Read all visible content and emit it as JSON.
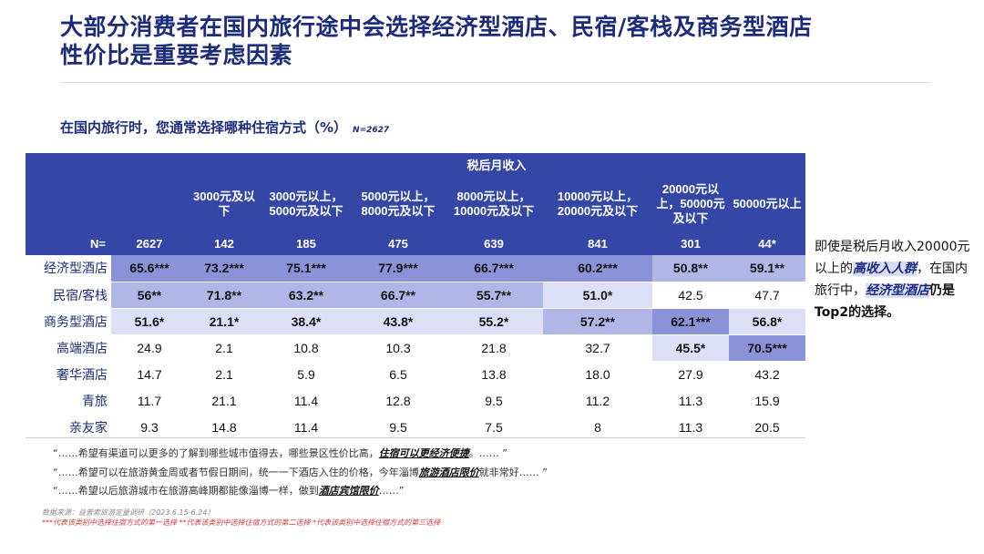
{
  "title": {
    "line1": "大部分消费者在国内旅行途中会选择经济型酒店、民宿/客栈及商务型酒店",
    "line2": "性价比是重要考虑因素"
  },
  "subtitle": {
    "text": "在国内旅行时，您通常选择哪种住宿方式（%）",
    "n": "N=2627"
  },
  "table": {
    "group_header": "税后月收入",
    "columns": [
      "",
      "3000元及以下",
      "3000元以上，5000元及以下",
      "5000元以上，8000元及以下",
      "8000元以上，10000元及以下",
      "10000元以上，20000元及以下",
      "20000元以上，50000元及以下",
      "50000元以上"
    ],
    "n_label": "N=",
    "n_values": [
      "2627",
      "142",
      "185",
      "475",
      "639",
      "841",
      "301",
      "44*"
    ],
    "rows": [
      {
        "label": "经济型酒店",
        "cells": [
          {
            "v": "65.6***",
            "l": 3
          },
          {
            "v": "73.2***",
            "l": 3
          },
          {
            "v": "75.1***",
            "l": 3
          },
          {
            "v": "77.9***",
            "l": 3
          },
          {
            "v": "66.7***",
            "l": 3
          },
          {
            "v": "60.2***",
            "l": 3
          },
          {
            "v": "50.8**",
            "l": 2
          },
          {
            "v": "59.1**",
            "l": 2
          }
        ]
      },
      {
        "label": "民宿/客栈",
        "cells": [
          {
            "v": "56**",
            "l": 2
          },
          {
            "v": "71.8**",
            "l": 2
          },
          {
            "v": "63.2**",
            "l": 2
          },
          {
            "v": "66.7**",
            "l": 2
          },
          {
            "v": "55.7**",
            "l": 2
          },
          {
            "v": "51.0*",
            "l": 1
          },
          {
            "v": "42.5",
            "l": 0
          },
          {
            "v": "47.7",
            "l": 0
          }
        ]
      },
      {
        "label": "商务型酒店",
        "cells": [
          {
            "v": "51.6*",
            "l": 1
          },
          {
            "v": "21.1*",
            "l": 1
          },
          {
            "v": "38.4*",
            "l": 1
          },
          {
            "v": "43.8*",
            "l": 1
          },
          {
            "v": "55.2*",
            "l": 1
          },
          {
            "v": "57.2**",
            "l": 2
          },
          {
            "v": "62.1***",
            "l": 3
          },
          {
            "v": "56.8*",
            "l": 1
          }
        ]
      },
      {
        "label": "高端酒店",
        "cells": [
          {
            "v": "24.9",
            "l": 0
          },
          {
            "v": "2.1",
            "l": 0
          },
          {
            "v": "10.8",
            "l": 0
          },
          {
            "v": "10.3",
            "l": 0
          },
          {
            "v": "21.8",
            "l": 0
          },
          {
            "v": "32.7",
            "l": 0
          },
          {
            "v": "45.5*",
            "l": 1
          },
          {
            "v": "70.5***",
            "l": 3
          }
        ]
      },
      {
        "label": "奢华酒店",
        "cells": [
          {
            "v": "14.7",
            "l": 0
          },
          {
            "v": "2.1",
            "l": 0
          },
          {
            "v": "5.9",
            "l": 0
          },
          {
            "v": "6.5",
            "l": 0
          },
          {
            "v": "13.8",
            "l": 0
          },
          {
            "v": "18.0",
            "l": 0
          },
          {
            "v": "27.9",
            "l": 0
          },
          {
            "v": "43.2",
            "l": 0
          }
        ]
      },
      {
        "label": "青旅",
        "cells": [
          {
            "v": "11.7",
            "l": 0
          },
          {
            "v": "21.1",
            "l": 0
          },
          {
            "v": "11.4",
            "l": 0
          },
          {
            "v": "12.8",
            "l": 0
          },
          {
            "v": "9.5",
            "l": 0
          },
          {
            "v": "11.2",
            "l": 0
          },
          {
            "v": "11.3",
            "l": 0
          },
          {
            "v": "15.9",
            "l": 0
          }
        ]
      },
      {
        "label": "亲友家",
        "cells": [
          {
            "v": "9.3",
            "l": 0
          },
          {
            "v": "14.8",
            "l": 0
          },
          {
            "v": "11.4",
            "l": 0
          },
          {
            "v": "9.5",
            "l": 0
          },
          {
            "v": "7.5",
            "l": 0
          },
          {
            "v": "8",
            "l": 0
          },
          {
            "v": "11.3",
            "l": 0
          },
          {
            "v": "20.5",
            "l": 0
          }
        ]
      }
    ],
    "colors": {
      "level3": "#8b93d8",
      "level2": "#b0b6e6",
      "level1": "#dcdff5",
      "level0": "#ffffff",
      "header": "#3646a7"
    }
  },
  "side_note": {
    "p1": "即使是税后月收入20000元以上的",
    "hl1": "高收入人群",
    "p2": "，在国内旅行中，",
    "hl2": "经济型酒店",
    "p3": "仍是Top2的选择。"
  },
  "quotes": [
    {
      "pre": "“……希望有渠道可以更多的了解到哪些城市值得去，哪些景区性价比高，",
      "hl": "住宿可以更经济便捷",
      "post": "。…… ”"
    },
    {
      "pre": "“……希望可以在旅游黄金周或者节假日期间，统一一下酒店入住的价格，今年淄博",
      "hl": "旅游酒店限价",
      "post": "就非常好…… ”"
    },
    {
      "pre": "“……希望以后旅游城市在旅游高峰期都能像淄博一样，做到",
      "hl": "酒店宾馆限价",
      "post": "……”"
    }
  ],
  "source": "数据来源：益普索旅游定量调研（2023.6.15-6.24）",
  "legend_note": "***代表该类别中选择住宿方式的第一选择 **代表该类别中选择住宿方式的第二选择 *代表该类别中选择住宿方式的第三选择"
}
